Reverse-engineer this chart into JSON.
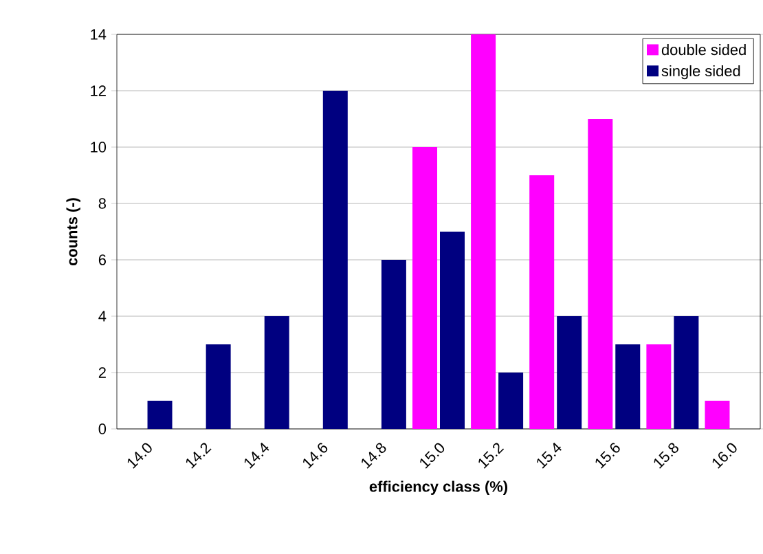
{
  "chart_data": {
    "type": "bar",
    "xlabel": "efficiency class (%)",
    "ylabel": "counts (-)",
    "categories": [
      "14.0",
      "14.2",
      "14.4",
      "14.6",
      "14.8",
      "15.0",
      "15.2",
      "15.4",
      "15.6",
      "15.8",
      "16.0"
    ],
    "series": [
      {
        "name": "double sided",
        "color": "#ff00ff",
        "values": [
          0,
          0,
          0,
          0,
          0,
          10,
          14,
          9,
          11,
          3,
          1
        ]
      },
      {
        "name": "single sided",
        "color": "#000080",
        "values": [
          1,
          3,
          4,
          12,
          6,
          7,
          2,
          4,
          3,
          4,
          0
        ]
      }
    ],
    "ylim": [
      0,
      14
    ],
    "yticks": [
      0,
      2,
      4,
      6,
      8,
      10,
      12,
      14
    ],
    "grid": "y",
    "legend": "top right"
  }
}
